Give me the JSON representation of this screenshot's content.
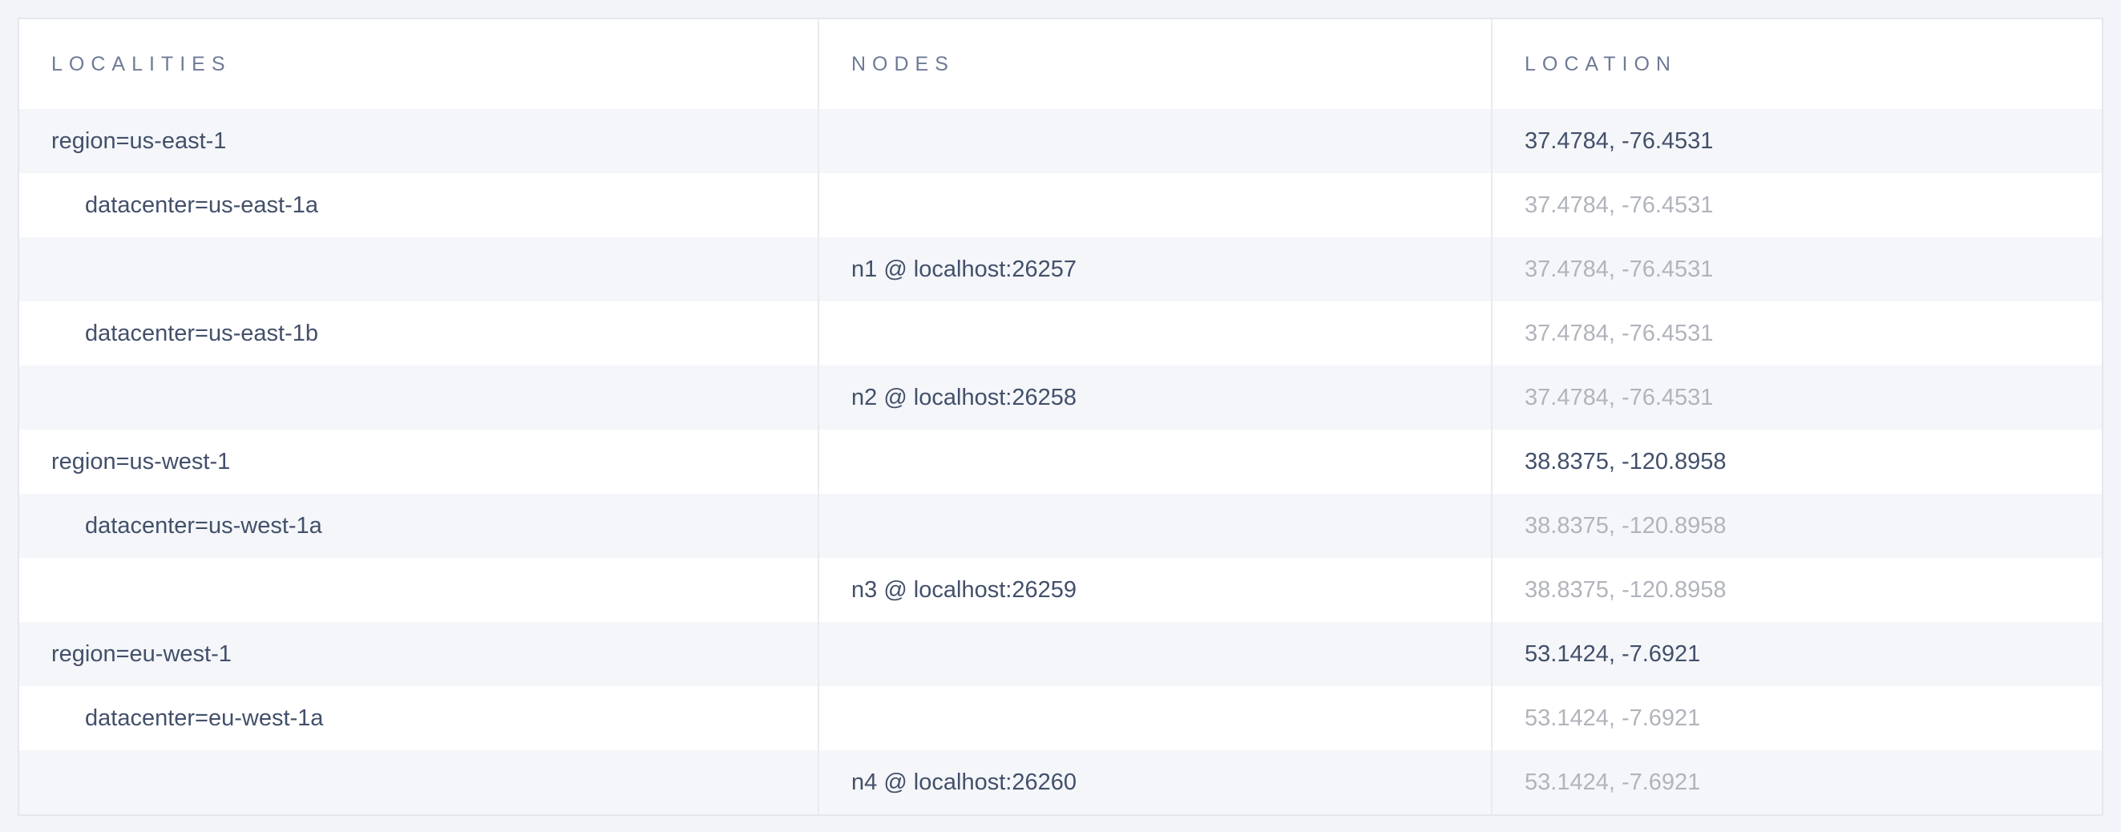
{
  "page": {
    "background_color": "#f3f4f9",
    "row_alt_color": "#f4f6f9",
    "border_color": "#e8eaf0",
    "header_text_color": "#6f7a96",
    "text_primary_color": "#43506a",
    "text_muted_color": "#b1b4bb"
  },
  "table": {
    "columns": [
      {
        "label": "LOCALITIES"
      },
      {
        "label": "NODES"
      },
      {
        "label": "LOCATION"
      }
    ],
    "rows": [
      {
        "locality": "region=us-east-1",
        "node": "",
        "location": "37.4784, -76.4531",
        "indent": 0,
        "location_style": "primary"
      },
      {
        "locality": "datacenter=us-east-1a",
        "node": "",
        "location": "37.4784, -76.4531",
        "indent": 1,
        "location_style": "muted"
      },
      {
        "locality": "",
        "node": "n1 @ localhost:26257",
        "location": "37.4784, -76.4531",
        "indent": 0,
        "location_style": "muted"
      },
      {
        "locality": "datacenter=us-east-1b",
        "node": "",
        "location": "37.4784, -76.4531",
        "indent": 1,
        "location_style": "muted"
      },
      {
        "locality": "",
        "node": "n2 @ localhost:26258",
        "location": "37.4784, -76.4531",
        "indent": 0,
        "location_style": "muted"
      },
      {
        "locality": "region=us-west-1",
        "node": "",
        "location": "38.8375, -120.8958",
        "indent": 0,
        "location_style": "primary"
      },
      {
        "locality": "datacenter=us-west-1a",
        "node": "",
        "location": "38.8375, -120.8958",
        "indent": 1,
        "location_style": "muted"
      },
      {
        "locality": "",
        "node": "n3 @ localhost:26259",
        "location": "38.8375, -120.8958",
        "indent": 0,
        "location_style": "muted"
      },
      {
        "locality": "region=eu-west-1",
        "node": "",
        "location": "53.1424, -7.6921",
        "indent": 0,
        "location_style": "primary"
      },
      {
        "locality": "datacenter=eu-west-1a",
        "node": "",
        "location": "53.1424, -7.6921",
        "indent": 1,
        "location_style": "muted"
      },
      {
        "locality": "",
        "node": "n4 @ localhost:26260",
        "location": "53.1424, -7.6921",
        "indent": 0,
        "location_style": "muted"
      }
    ]
  }
}
